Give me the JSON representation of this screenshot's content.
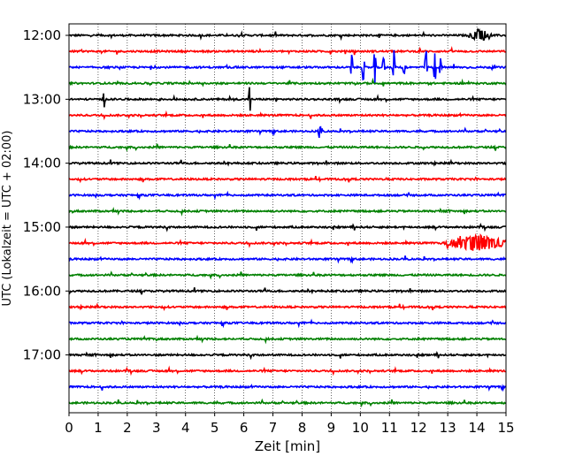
{
  "chart_data": {
    "type": "line",
    "title": "",
    "xlabel": "Zeit  [min]",
    "ylabel": "UTC (Lokalzeit = UTC + 02:00)",
    "xlim": [
      0,
      15
    ],
    "x_ticks": [
      "0",
      "1",
      "2",
      "3",
      "4",
      "5",
      "6",
      "7",
      "8",
      "9",
      "10",
      "11",
      "12",
      "13",
      "14",
      "15"
    ],
    "y_tick_labels": [
      "12:00",
      "13:00",
      "14:00",
      "15:00",
      "16:00",
      "17:00"
    ],
    "grid": "vertical dotted",
    "trace_colors": [
      "#000000",
      "#ff0000",
      "#0000ff",
      "#008000"
    ],
    "rows": [
      {
        "start": "12:00",
        "color": "#000000",
        "events": [
          {
            "t": 14.1,
            "amp": 0.35,
            "w": 0.45
          }
        ]
      },
      {
        "start": "12:15",
        "color": "#ff0000",
        "events": []
      },
      {
        "start": "12:30",
        "color": "#0000ff",
        "events": [
          {
            "t": 9.7,
            "amp": 1.1,
            "w": 0.05
          },
          {
            "t": 10.1,
            "amp": 1.2,
            "w": 0.05
          },
          {
            "t": 10.5,
            "amp": 1.5,
            "w": 0.05
          },
          {
            "t": 10.8,
            "amp": 0.9,
            "w": 0.05
          },
          {
            "t": 11.15,
            "amp": 1.3,
            "w": 0.05
          },
          {
            "t": 11.5,
            "amp": 0.6,
            "w": 0.05
          },
          {
            "t": 12.25,
            "amp": 1.4,
            "w": 0.05
          },
          {
            "t": 12.55,
            "amp": 1.6,
            "w": 0.05
          },
          {
            "t": 12.75,
            "amp": 0.7,
            "w": 0.05
          }
        ]
      },
      {
        "start": "12:45",
        "color": "#008000",
        "events": []
      },
      {
        "start": "13:00",
        "color": "#000000",
        "events": [
          {
            "t": 1.2,
            "amp": 0.5,
            "w": 0.05
          },
          {
            "t": 6.2,
            "amp": 0.9,
            "w": 0.05
          }
        ]
      },
      {
        "start": "13:15",
        "color": "#ff0000",
        "events": []
      },
      {
        "start": "13:30",
        "color": "#0000ff",
        "events": [
          {
            "t": 8.6,
            "amp": 0.35,
            "w": 0.1
          }
        ]
      },
      {
        "start": "13:45",
        "color": "#008000",
        "events": []
      },
      {
        "start": "14:00",
        "color": "#000000",
        "events": []
      },
      {
        "start": "14:15",
        "color": "#ff0000",
        "events": []
      },
      {
        "start": "14:30",
        "color": "#0000ff",
        "events": []
      },
      {
        "start": "14:45",
        "color": "#008000",
        "events": []
      },
      {
        "start": "15:00",
        "color": "#000000",
        "events": []
      },
      {
        "start": "15:15",
        "color": "#ff0000",
        "events": [
          {
            "t": 14.0,
            "amp": 0.45,
            "w": 1.3
          }
        ]
      },
      {
        "start": "15:30",
        "color": "#0000ff",
        "events": []
      },
      {
        "start": "15:45",
        "color": "#008000",
        "events": []
      },
      {
        "start": "16:00",
        "color": "#000000",
        "events": []
      },
      {
        "start": "16:15",
        "color": "#ff0000",
        "events": []
      },
      {
        "start": "16:30",
        "color": "#0000ff",
        "events": []
      },
      {
        "start": "16:45",
        "color": "#008000",
        "events": []
      },
      {
        "start": "17:00",
        "color": "#000000",
        "events": []
      },
      {
        "start": "17:15",
        "color": "#ff0000",
        "events": []
      },
      {
        "start": "17:30",
        "color": "#0000ff",
        "events": []
      },
      {
        "start": "17:45",
        "color": "#008000",
        "events": []
      }
    ]
  }
}
